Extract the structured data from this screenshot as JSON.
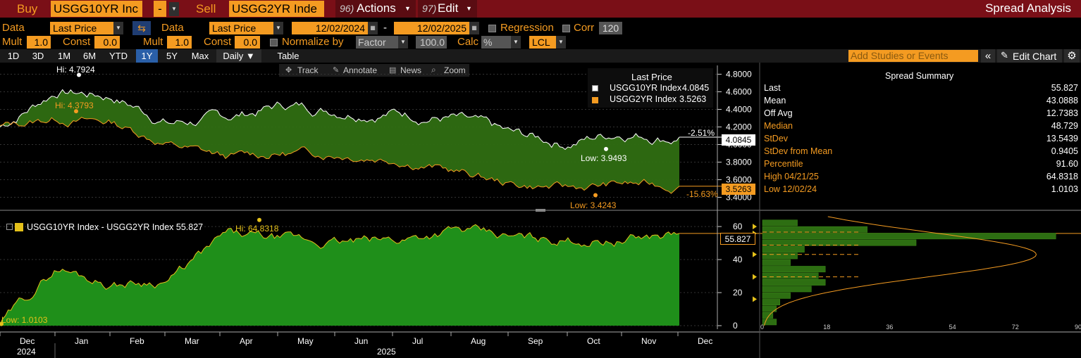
{
  "topbar": {
    "buy_label": "Buy",
    "buy_value": "USGG10YR Inc",
    "dash": "-",
    "sell_label": "Sell",
    "sell_value": "USGG2YR Inde",
    "actions_num": "96)",
    "actions_label": "Actions",
    "edit_num": "97)",
    "edit_label": "Edit",
    "title": "Spread Analysis"
  },
  "row1": {
    "data1_label": "Data",
    "data1_value": "Last Price",
    "data2_label": "Data",
    "data2_value": "Last Price",
    "start_date": "12/02/2024",
    "sep": "-",
    "end_date": "12/02/2025",
    "regression_label": "Regression",
    "corr_label": "Corr",
    "corr_value": "120"
  },
  "row2": {
    "mult1_label": "Mult",
    "mult1_value": "1.0",
    "const1_label": "Const",
    "const1_value": "0.0",
    "mult2_label": "Mult",
    "mult2_value": "1.0",
    "const2_label": "Const",
    "const2_value": "0.0",
    "normalize_label": "Normalize by",
    "normalize_value": "Factor",
    "factor_value": "100.0",
    "calc_label": "Calc",
    "calc_value": "%",
    "lcl_value": "LCL"
  },
  "toolbar": {
    "ranges": [
      "1D",
      "3D",
      "1M",
      "6M",
      "YTD",
      "1Y",
      "5Y",
      "Max"
    ],
    "selected": "1Y",
    "period": "Daily ▼",
    "table": "Table",
    "studies_placeholder": "Add Studies or Events",
    "edit_chart": "Edit Chart"
  },
  "chart_tools": {
    "track": "Track",
    "annotate": "Annotate",
    "news": "News",
    "zoom": "Zoom"
  },
  "legend_top": {
    "title": "Last Price",
    "series1_name": "USGG10YR Index",
    "series1_value": "4.0845",
    "series2_name": "USGG2YR Index",
    "series2_value": "3.5263"
  },
  "annotations_top": {
    "hi1": "Hi: 4.7924",
    "hi2": "Hi: 4.3793",
    "low1": "Low: 3.9493",
    "low2": "Low: 3.4243",
    "pct1": "-2.51%",
    "pct2": "-15.63%",
    "last1": "4.0845",
    "last2": "3.5263"
  },
  "legend_bottom": {
    "series_name": "USGG10YR Index - USGG2YR Index 55.827"
  },
  "annotations_bottom": {
    "hi": "Hi: 64.8318",
    "low": "Low: 1.0103",
    "last": "55.827"
  },
  "x_axis": {
    "months": [
      "Dec",
      "Jan",
      "Feb",
      "Mar",
      "Apr",
      "May",
      "Jun",
      "Jul",
      "Aug",
      "Sep",
      "Oct",
      "Nov",
      "Dec"
    ],
    "year1": "2024",
    "year2": "2025"
  },
  "summary": {
    "title": "Spread Summary",
    "rows": [
      {
        "k": "Last",
        "v": "55.827",
        "c": "#ffffff"
      },
      {
        "k": "Mean",
        "v": "43.0888",
        "c": "#ffffff"
      },
      {
        "k": "Off Avg",
        "v": "12.7383",
        "c": "#ffffff"
      },
      {
        "k": "Median",
        "v": "48.729",
        "c": "#f49b21"
      },
      {
        "k": "StDev",
        "v": "13.5439",
        "c": "#f49b21"
      },
      {
        "k": "StDev from Mean",
        "v": "0.9405",
        "c": "#f49b21"
      },
      {
        "k": "Percentile",
        "v": "91.60",
        "c": "#f49b21"
      },
      {
        "k": "High 04/21/25",
        "v": "64.8318",
        "c": "#f49b21"
      },
      {
        "k": "Low 12/02/24",
        "v": "1.0103",
        "c": "#f49b21"
      }
    ]
  },
  "colors": {
    "header_bar": "#7a0f17",
    "orange": "#f49b21",
    "green_fill": "#2f7a14",
    "spread_fill": "#1f8f1a",
    "selected_blue": "#2a5fa8"
  },
  "chart_data": [
    {
      "type": "line",
      "name": "Price chart",
      "series": [
        {
          "name": "USGG10YR Index",
          "x": [
            "Dec",
            "Jan",
            "Feb",
            "Mar",
            "Apr",
            "May",
            "Jun",
            "Jul",
            "Aug",
            "Sep",
            "Oct",
            "Nov",
            "Dec"
          ],
          "values": [
            4.2,
            4.62,
            4.55,
            4.25,
            4.3,
            4.45,
            4.4,
            4.38,
            4.3,
            4.1,
            4.02,
            4.15,
            4.0845
          ]
        },
        {
          "name": "USGG2YR Index",
          "x": [
            "Dec",
            "Jan",
            "Feb",
            "Mar",
            "Apr",
            "May",
            "Jun",
            "Jul",
            "Aug",
            "Sep",
            "Oct",
            "Nov",
            "Dec"
          ],
          "values": [
            4.2,
            4.3,
            4.25,
            4.0,
            3.85,
            3.9,
            3.9,
            3.85,
            3.7,
            3.55,
            3.5,
            3.55,
            3.5263
          ]
        }
      ],
      "y_ticks": [
        "4.8000",
        "4.6000",
        "4.4000",
        "4.2000",
        "4.0000",
        "3.8000",
        "3.6000",
        "3.4000"
      ],
      "ylim": [
        3.3,
        4.9
      ],
      "hi": [
        4.7924,
        4.3793
      ],
      "low": [
        3.9493,
        3.4243
      ]
    },
    {
      "type": "area",
      "name": "Spread chart",
      "series": [
        {
          "name": "USGG10YR Index - USGG2YR Index",
          "x": [
            "Dec",
            "Jan",
            "Feb",
            "Mar",
            "Apr",
            "May",
            "Jun",
            "Jul",
            "Aug",
            "Sep",
            "Oct",
            "Nov",
            "Dec"
          ],
          "values": [
            1.01,
            35,
            25,
            28,
            55,
            52,
            50,
            52,
            58,
            53,
            52,
            52,
            55.827
          ]
        }
      ],
      "y_ticks": [
        "0",
        "20",
        "40",
        "60"
      ],
      "ylim": [
        0,
        66
      ],
      "hi": 64.8318,
      "low": 1.0103
    },
    {
      "type": "bar",
      "name": "Distribution histogram",
      "x_ticks": [
        "0",
        "18",
        "36",
        "54",
        "72",
        "90"
      ],
      "bins": [
        {
          "y": 62,
          "count": 10
        },
        {
          "y": 58,
          "count": 30
        },
        {
          "y": 54,
          "count": 84
        },
        {
          "y": 50,
          "count": 44
        },
        {
          "y": 46,
          "count": 12
        },
        {
          "y": 42,
          "count": 10
        },
        {
          "y": 38,
          "count": 8
        },
        {
          "y": 34,
          "count": 18
        },
        {
          "y": 30,
          "count": 16
        },
        {
          "y": 26,
          "count": 18
        },
        {
          "y": 22,
          "count": 14
        },
        {
          "y": 18,
          "count": 8
        },
        {
          "y": 14,
          "count": 5
        },
        {
          "y": 10,
          "count": 4
        },
        {
          "y": 6,
          "count": 3
        },
        {
          "y": 2,
          "count": 4
        }
      ]
    }
  ]
}
